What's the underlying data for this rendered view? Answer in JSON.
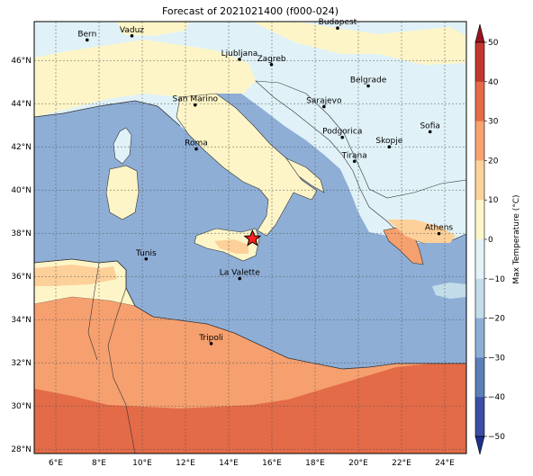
{
  "title": "Forecast of 2021021400 (f000-024)",
  "map": {
    "lon_range": [
      5,
      25
    ],
    "lat_range": [
      27.8,
      47.8
    ],
    "lon_ticks": [
      "6°E",
      "8°E",
      "10°E",
      "12°E",
      "14°E",
      "16°E",
      "18°E",
      "20°E",
      "22°E",
      "24°E"
    ],
    "lat_ticks": [
      "28°N",
      "30°N",
      "32°N",
      "34°N",
      "36°N",
      "38°N",
      "40°N",
      "42°N",
      "44°N",
      "46°N"
    ],
    "gridlines": true
  },
  "cities": [
    {
      "name": "Bern",
      "lon": 7.45,
      "lat": 46.95
    },
    {
      "name": "Vaduz",
      "lon": 9.52,
      "lat": 47.14
    },
    {
      "name": "Budapest",
      "lon": 19.04,
      "lat": 47.5
    },
    {
      "name": "Ljubljana",
      "lon": 14.5,
      "lat": 46.05
    },
    {
      "name": "Zagreb",
      "lon": 15.98,
      "lat": 45.81
    },
    {
      "name": "San Marino",
      "lon": 12.45,
      "lat": 43.94
    },
    {
      "name": "Belgrade",
      "lon": 20.46,
      "lat": 44.82
    },
    {
      "name": "Sarajevo",
      "lon": 18.41,
      "lat": 43.86
    },
    {
      "name": "Sofia",
      "lon": 23.32,
      "lat": 42.7
    },
    {
      "name": "Roma",
      "lon": 12.5,
      "lat": 41.9
    },
    {
      "name": "Podgorica",
      "lon": 19.26,
      "lat": 42.44
    },
    {
      "name": "Skopje",
      "lon": 21.43,
      "lat": 42.0
    },
    {
      "name": "Tirana",
      "lon": 19.82,
      "lat": 41.33
    },
    {
      "name": "Athens",
      "lon": 23.73,
      "lat": 37.98
    },
    {
      "name": "Tunis",
      "lon": 10.18,
      "lat": 36.81
    },
    {
      "name": "La Valette",
      "lon": 14.51,
      "lat": 35.9
    },
    {
      "name": "Tripoli",
      "lon": 13.19,
      "lat": 32.89
    }
  ],
  "marker": {
    "symbol": "red-star",
    "lon": 15.1,
    "lat": 37.75
  },
  "colorbar": {
    "label": "Max Temperature (°C)",
    "ticks": [
      "−50",
      "−40",
      "−30",
      "−20",
      "−10",
      "0",
      "10",
      "20",
      "30",
      "40",
      "50"
    ],
    "colors": [
      "#1f2f8c",
      "#3a4ea5",
      "#5a7fb8",
      "#8caed6",
      "#c2dcea",
      "#e2f3f9",
      "#fef6c8",
      "#fdd29a",
      "#f7a26f",
      "#e36b47",
      "#c3382e",
      "#9a1322"
    ],
    "extend": "both"
  },
  "fill_colors": {
    "sea": "#8eaed6",
    "land_cool": "#e0f2f8",
    "land_mild": "#fdf5c7",
    "warm_10_20": "#fdd09a",
    "warm_20_30": "#f6a06f",
    "hot_30_40": "#e36b47"
  }
}
